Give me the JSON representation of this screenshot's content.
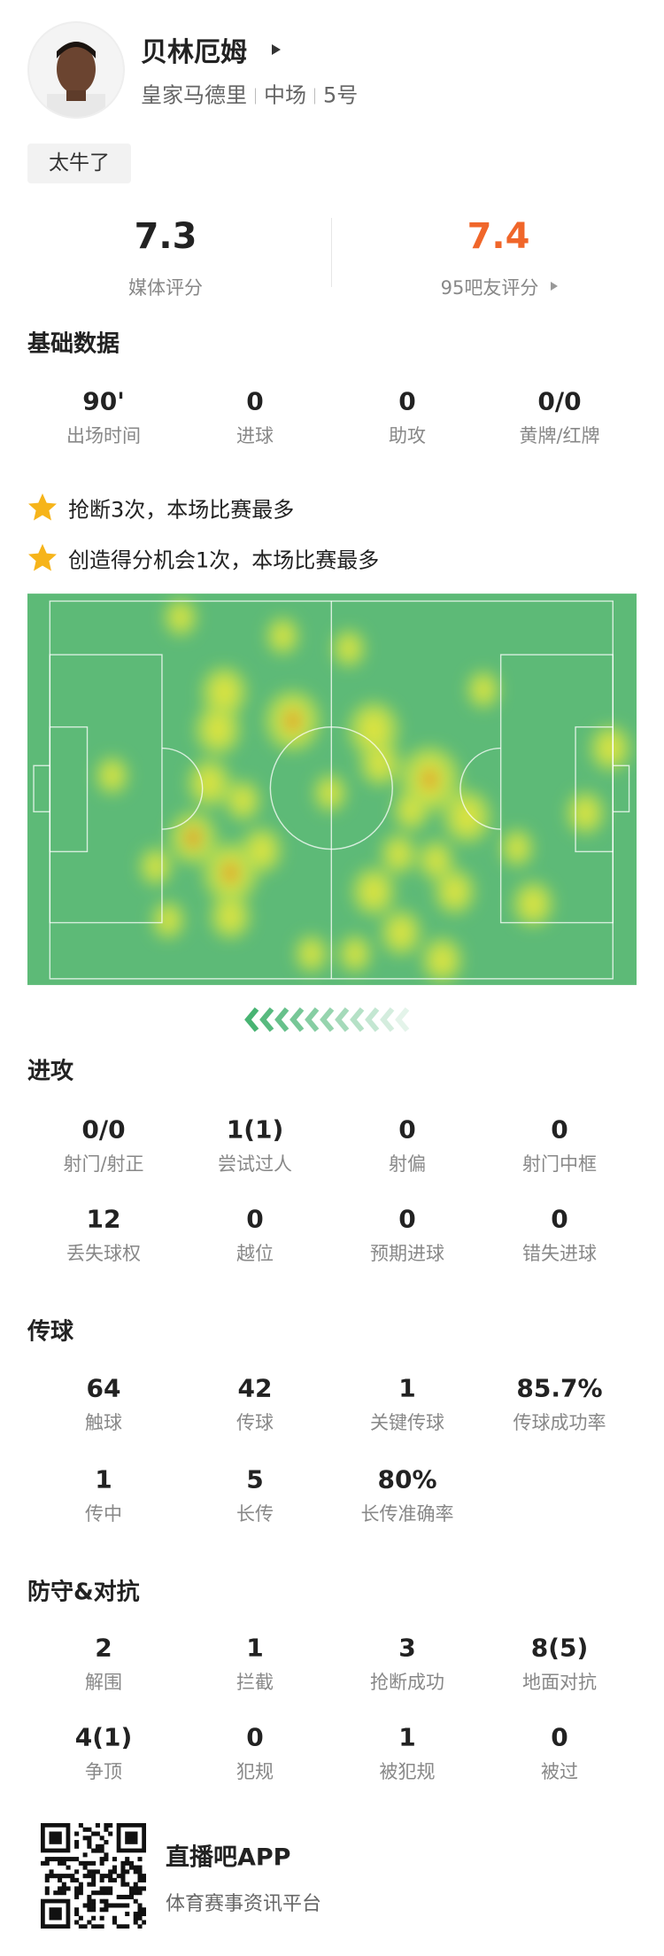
{
  "player": {
    "name": "贝林厄姆",
    "team": "皇家马德里",
    "position": "中场",
    "number": "5号",
    "tag": "太牛了"
  },
  "ratings": [
    {
      "value": "7.3",
      "label": "媒体评分"
    },
    {
      "value": "7.4",
      "label": "95吧友评分"
    }
  ],
  "highlights": [
    "抢断3次，本场比赛最多",
    "创造得分机会1次，本场比赛最多"
  ],
  "sections": [
    {
      "title": "基础数据",
      "stats": [
        {
          "value": "90'",
          "label": "出场时间"
        },
        {
          "value": "0",
          "label": "进球"
        },
        {
          "value": "0",
          "label": "助攻"
        },
        {
          "value": "0/0",
          "label": "黄牌/红牌"
        }
      ]
    },
    {
      "title": "进攻",
      "stats": [
        {
          "value": "0/0",
          "label": "射门/射正"
        },
        {
          "value": "1(1)",
          "label": "尝试过人"
        },
        {
          "value": "0",
          "label": "射偏"
        },
        {
          "value": "0",
          "label": "射门中框"
        },
        {
          "value": "12",
          "label": "丢失球权"
        },
        {
          "value": "0",
          "label": "越位"
        },
        {
          "value": "0",
          "label": "预期进球"
        },
        {
          "value": "0",
          "label": "错失进球"
        }
      ]
    },
    {
      "title": "传球",
      "stats": [
        {
          "value": "64",
          "label": "触球"
        },
        {
          "value": "42",
          "label": "传球"
        },
        {
          "value": "1",
          "label": "关键传球"
        },
        {
          "value": "85.7%",
          "label": "传球成功率"
        },
        {
          "value": "1",
          "label": "传中"
        },
        {
          "value": "5",
          "label": "长传"
        },
        {
          "value": "80%",
          "label": "长传准确率"
        }
      ]
    },
    {
      "title": "防守&对抗",
      "stats": [
        {
          "value": "2",
          "label": "解围"
        },
        {
          "value": "1",
          "label": "拦截"
        },
        {
          "value": "3",
          "label": "抢断成功"
        },
        {
          "value": "8(5)",
          "label": "地面对抗"
        },
        {
          "value": "4(1)",
          "label": "争顶"
        },
        {
          "value": "0",
          "label": "犯规"
        },
        {
          "value": "1",
          "label": "被犯规"
        },
        {
          "value": "0",
          "label": "被过"
        }
      ]
    }
  ],
  "footer": {
    "app": "直播吧APP",
    "slogan": "体育赛事资讯平台"
  }
}
